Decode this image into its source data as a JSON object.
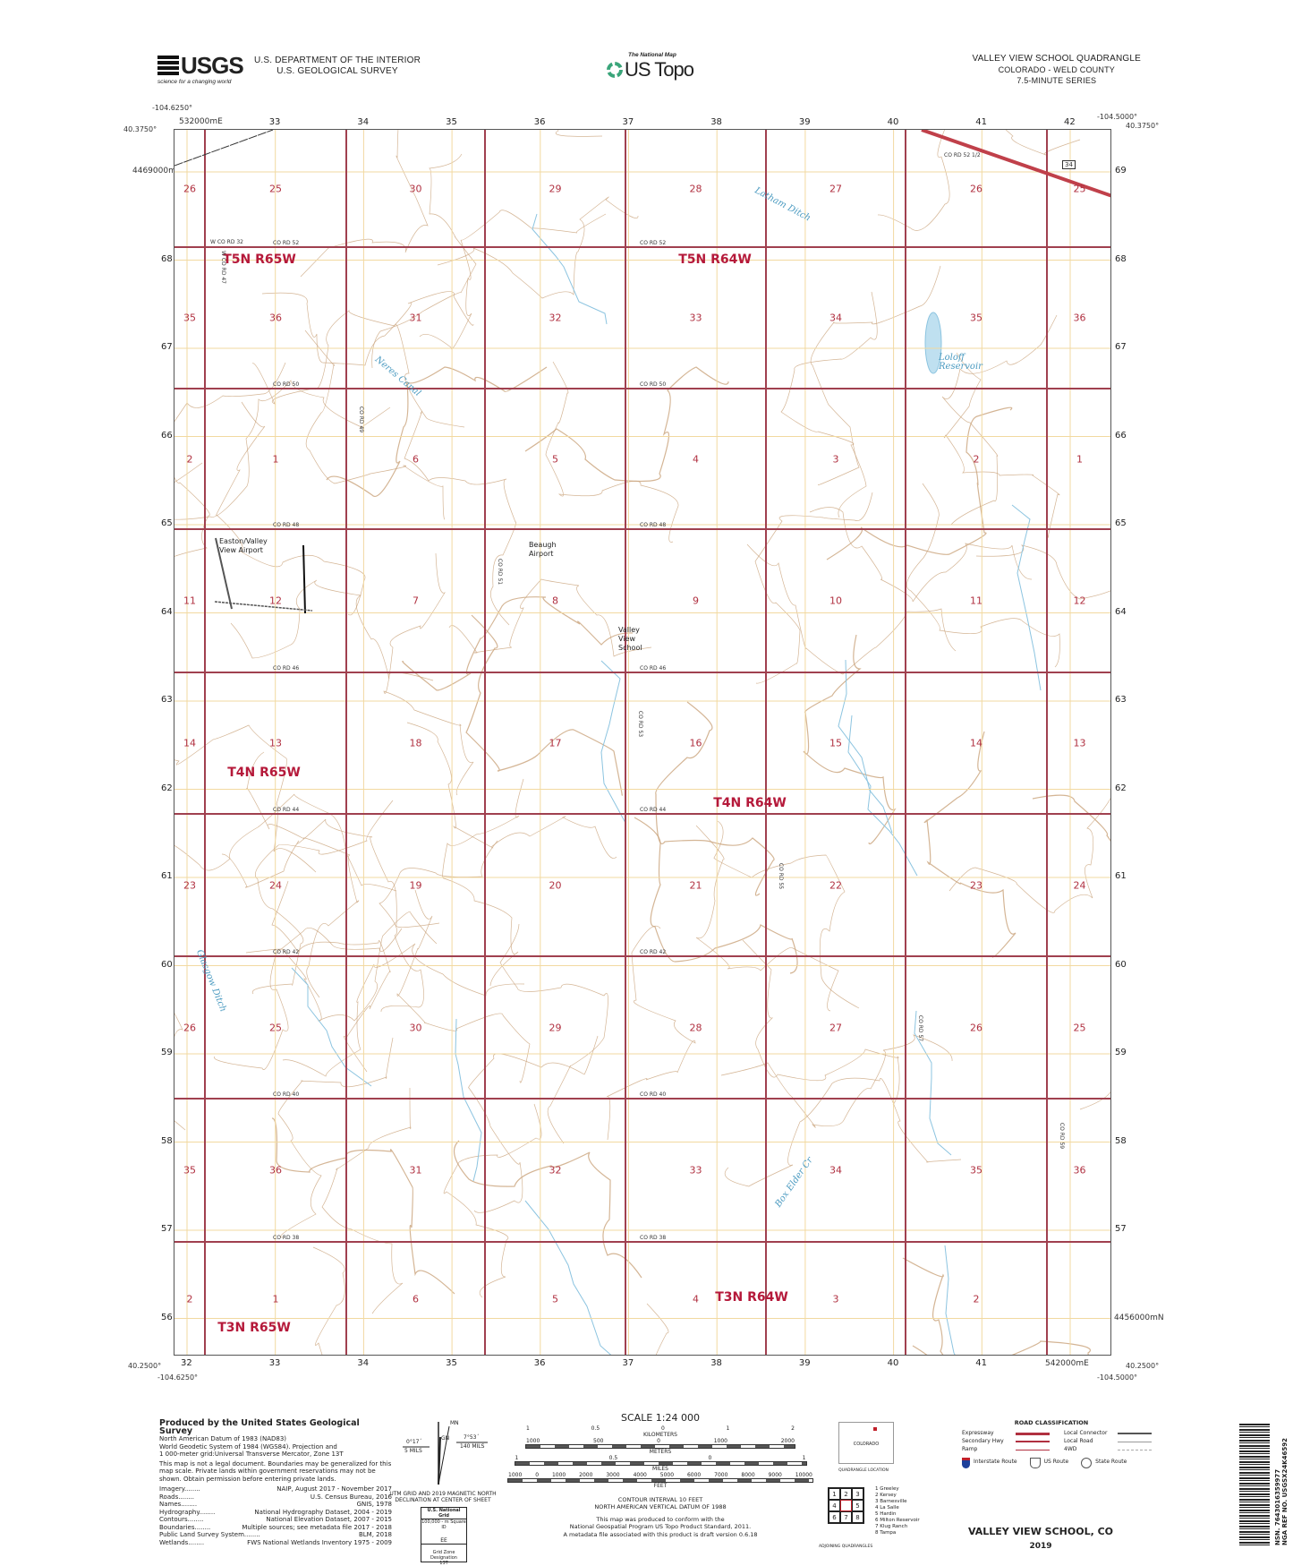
{
  "header": {
    "agency_logo": "USGS",
    "agency_tagline": "science for a changing world",
    "department": "U.S. DEPARTMENT OF THE INTERIOR",
    "survey": "U.S. GEOLOGICAL SURVEY",
    "product_logo_small": "The National Map",
    "product_logo": "US Topo",
    "quad_title": "VALLEY VIEW SCHOOL QUADRANGLE",
    "state_county": "COLORADO - WELD COUNTY",
    "series": "7.5-MINUTE SERIES"
  },
  "frame": {
    "nw_lon": "-104.6250°",
    "nw_lat": "40.3750°",
    "ne_lon": "-104.5000°",
    "ne_lat": "40.3750°",
    "sw_lon": "-104.6250°",
    "sw_lat": "40.2500°",
    "se_lon": "-104.5000°",
    "se_lat": "40.2500°",
    "easting_first": "532000mE",
    "easting_last": "542000mE",
    "northing_first": "4469000mN",
    "northing_last": "4456000mN",
    "eastings": [
      "32",
      "33",
      "34",
      "35",
      "36",
      "37",
      "38",
      "39",
      "40",
      "41",
      "42"
    ],
    "northings": [
      "69",
      "68",
      "67",
      "66",
      "65",
      "64",
      "63",
      "62",
      "61",
      "60",
      "59",
      "58",
      "57",
      "56"
    ]
  },
  "map": {
    "colors": {
      "section_line": "#a0404f",
      "contour": "#c9a27a",
      "water": "#8cc4e0",
      "grid": "#f2d9a0",
      "road": "#888888",
      "highway": "#c0404a"
    },
    "sections": [
      [
        "26",
        "25",
        "30",
        "29",
        "28",
        "27",
        "26",
        "25"
      ],
      [
        "35",
        "36",
        "31",
        "32",
        "33",
        "34",
        "35",
        "36"
      ],
      [
        "2",
        "1",
        "6",
        "5",
        "4",
        "3",
        "2",
        "1"
      ],
      [
        "11",
        "12",
        "7",
        "8",
        "9",
        "10",
        "11",
        "12"
      ],
      [
        "14",
        "13",
        "18",
        "17",
        "16",
        "15",
        "14",
        "13"
      ],
      [
        "23",
        "24",
        "19",
        "20",
        "21",
        "22",
        "23",
        "24"
      ],
      [
        "26",
        "25",
        "30",
        "29",
        "28",
        "27",
        "26",
        "25"
      ],
      [
        "35",
        "36",
        "31",
        "32",
        "33",
        "34",
        "35",
        "36"
      ],
      [
        "2",
        "1",
        "6",
        "5",
        "4",
        "3",
        "2",
        ""
      ]
    ],
    "townships": [
      "T5N R65W",
      "T5N R64W",
      "T4N R65W",
      "T4N R64W",
      "T3N R65W",
      "T3N R64W"
    ],
    "roads_horizontal": [
      "CO RD 52",
      "CO RD 50",
      "CO RD 48",
      "CO RD 46",
      "CO RD 44",
      "CO RD 42",
      "CO RD 40",
      "CO RD 38"
    ],
    "road_52_west": "W CO RD 32",
    "road_52_half": "CO RD 52 1/2",
    "roads_vertical": [
      "W CO RD 47",
      "CO RD 49",
      "CO RD 51",
      "CO RD 53",
      "CO RD 55",
      "CO RD 57",
      "CO RD 59"
    ],
    "us_route": "34",
    "places": {
      "airport1": "Easton/Valley View Airport",
      "airport2": "Beaugh Airport",
      "school": "Valley View School"
    },
    "water": {
      "ditch1": "Latham Ditch",
      "reservoir": "Loloff Reservoir",
      "canal": "Neres Canal",
      "ditch2": "Glasgow Ditch",
      "creek": "Box Elder Cr"
    }
  },
  "footer": {
    "producer": "Produced by the United States Geological Survey",
    "datum_lines": [
      "North American Datum of 1983 (NAD83)",
      "World Geodetic System of 1984 (WGS84). Projection and",
      "1 000-meter grid:Universal Transverse Mercator, Zone 13T"
    ],
    "disclaimer": "This map is not a legal document. Boundaries may be generalized for this map scale. Private lands within government reservations may not be shown. Obtain permission before entering private lands.",
    "credits": [
      {
        "item": "Imagery",
        "source": "NAIP, August 2017 - November 2017"
      },
      {
        "item": "Roads",
        "source": "U.S. Census Bureau, 2016"
      },
      {
        "item": "Names",
        "source": "GNIS, 1978"
      },
      {
        "item": "Hydrography",
        "source": "National Hydrography Dataset, 2004 - 2019"
      },
      {
        "item": "Contours",
        "source": "National Elevation Dataset, 2007 - 2015"
      },
      {
        "item": "Boundaries",
        "source": "Multiple sources; see metadata file 2017 - 2018"
      },
      {
        "item": "Public Land Survey System",
        "source": "BLM, 2018"
      },
      {
        "item": "Wetlands",
        "source": "FWS National Wetlands Inventory 1975 - 2009"
      }
    ],
    "declination": {
      "mn": "MN",
      "gn": "GN",
      "grid_angle": "0°17´",
      "grid_mils": "5 MILS",
      "mag_angle": "7°53´",
      "mag_mils": "140 MILS",
      "caption": "UTM GRID AND 2019 MAGNETIC NORTH DECLINATION AT CENTER OF SHEET"
    },
    "national_grid": {
      "title": "U.S. National Grid",
      "square_label": "100,000 - m Square ID",
      "square_id": "EE",
      "zone_label": "Grid Zone Designation",
      "zone": "13T"
    },
    "scale": {
      "title": "SCALE 1:24 000",
      "km_ticks": [
        "1",
        "0.5",
        "0",
        "1",
        "2"
      ],
      "km_label": "KILOMETERS",
      "m_ticks": [
        "1000",
        "500",
        "0",
        "1000",
        "2000"
      ],
      "m_label": "METERS",
      "mi_ticks": [
        "1",
        "0.5",
        "0",
        "1"
      ],
      "mi_label": "MILES",
      "ft_ticks": [
        "1000",
        "0",
        "1000",
        "2000",
        "3000",
        "4000",
        "5000",
        "6000",
        "7000",
        "8000",
        "9000",
        "10000"
      ],
      "ft_label": "FEET"
    },
    "contour_interval": "CONTOUR INTERVAL 10 FEET",
    "vertical_datum": "NORTH AMERICAN VERTICAL DATUM OF 1988",
    "standard_lines": [
      "This map was produced to conform with the",
      "National Geospatial Program US Topo Product Standard, 2011.",
      "A metadata file associated with this product is draft version 0.6.18"
    ],
    "state_box": "COLORADO",
    "quad_location": "QUADRANGLE LOCATION",
    "adjoining": [
      "1 Greeley",
      "2 Kersey",
      "3 Barnesville",
      "4 La Salle",
      "5 Hardin",
      "6 Milton Reservoir",
      "7 Klug Ranch",
      "8 Tampa"
    ],
    "adjoining_grid": [
      "1",
      "2",
      "3",
      "4",
      "",
      "5",
      "6",
      "7",
      "8"
    ],
    "adjoining_label": "ADJOINING QUADRANGLES",
    "road_class": {
      "title": "ROAD CLASSIFICATION",
      "items": [
        "Expressway",
        "Secondary Hwy",
        "Ramp",
        "Local Connector",
        "Local Road",
        "4WD"
      ],
      "routes": [
        "Interstate Route",
        "US Route",
        "State Route"
      ]
    },
    "sheet_title": "VALLEY VIEW SCHOOL, CO",
    "year": "2019",
    "nsn": "NSN. 7643016359977",
    "nga_ref": "NGA REF NO. USGSX24K46592"
  }
}
